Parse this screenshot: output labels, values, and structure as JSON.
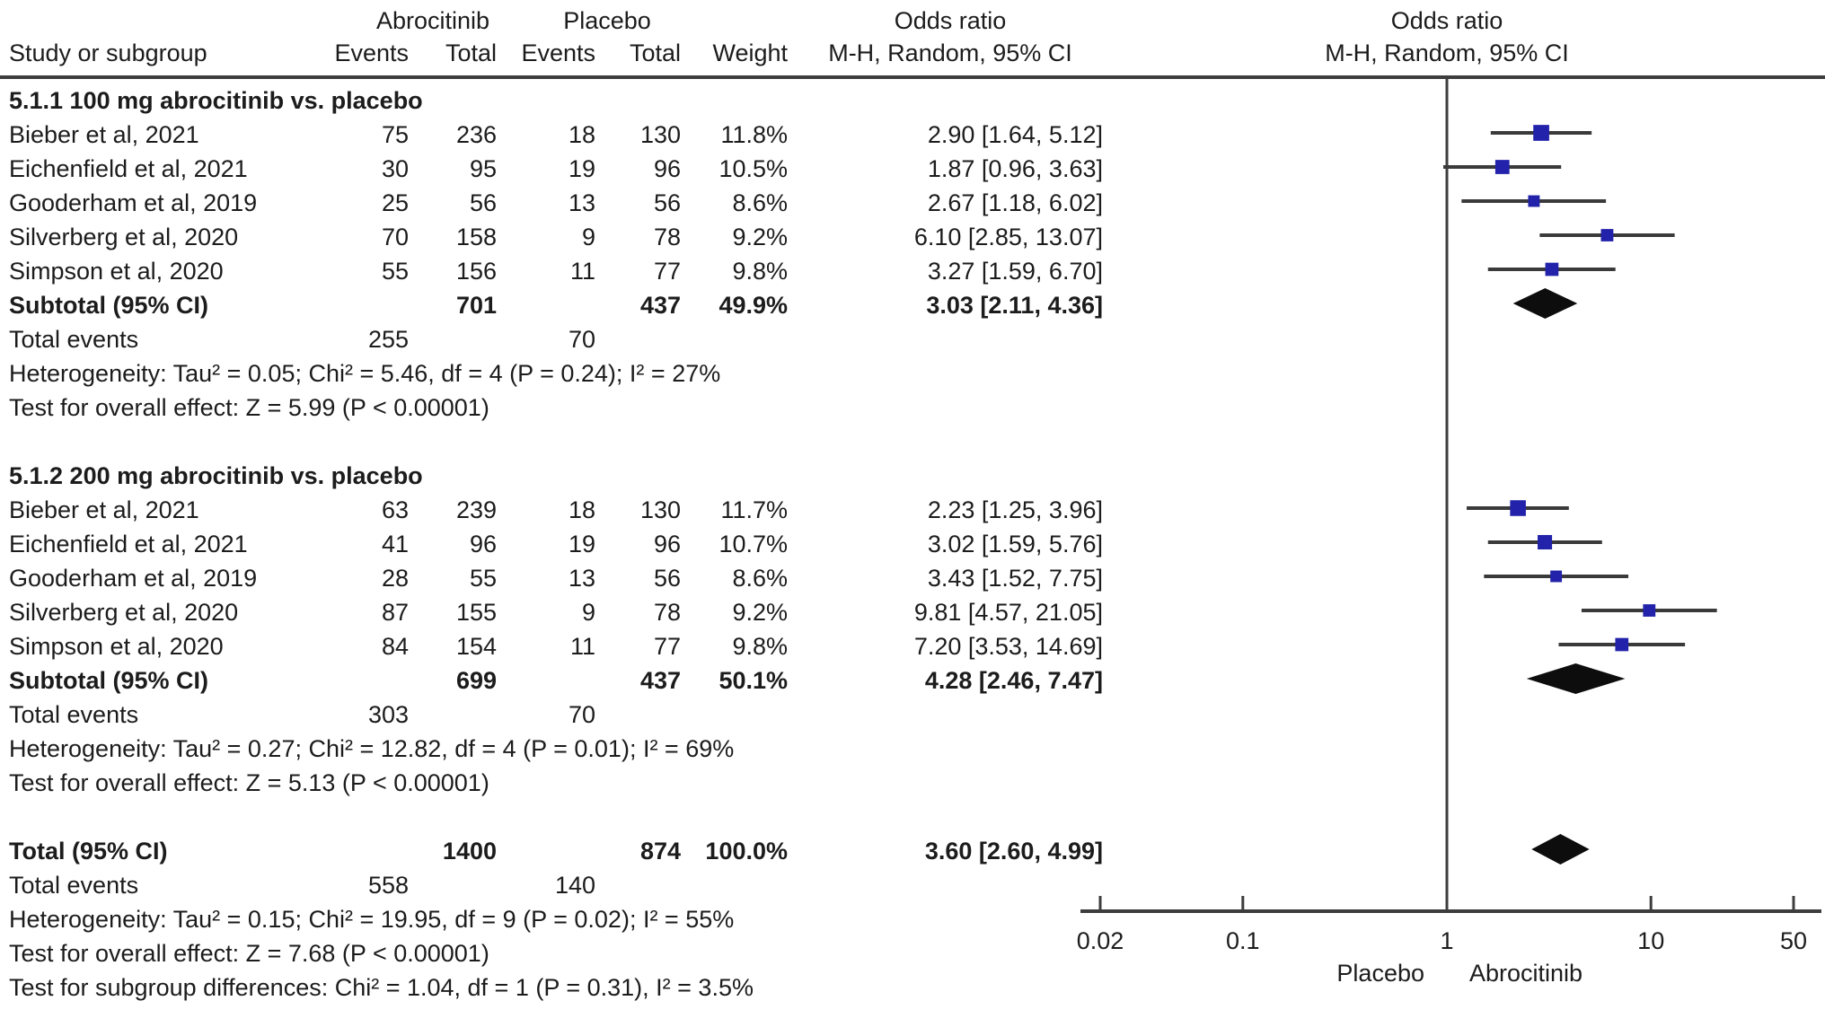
{
  "chart_data": {
    "type": "forest",
    "effect_measure": "Odds ratio",
    "method": "M-H, Random, 95% CI",
    "header": {
      "study_col": "Study or subgroup",
      "treatment_group": "Abrocitinib",
      "control_group": "Placebo",
      "events_col": "Events",
      "total_col": "Total",
      "weight_col": "Weight",
      "or_line1": "Odds ratio",
      "or_line2": "M-H, Random, 95% CI",
      "plot_line1": "Odds ratio",
      "plot_line2": "M-H, Random, 95% CI"
    },
    "groups": [
      {
        "label": "5.1.1 100 mg abrocitinib vs. placebo",
        "studies": [
          {
            "name": "Bieber et al, 2021",
            "e1": "75",
            "n1": "236",
            "e2": "18",
            "n2": "130",
            "weight": "11.8%",
            "weight_val": 11.8,
            "or_text": "2.90 [1.64, 5.12]",
            "or": 2.9,
            "lo": 1.64,
            "hi": 5.12
          },
          {
            "name": "Eichenfield et al, 2021",
            "e1": "30",
            "n1": "95",
            "e2": "19",
            "n2": "96",
            "weight": "10.5%",
            "weight_val": 10.5,
            "or_text": "1.87 [0.96, 3.63]",
            "or": 1.87,
            "lo": 0.96,
            "hi": 3.63
          },
          {
            "name": "Gooderham et al, 2019",
            "e1": "25",
            "n1": "56",
            "e2": "13",
            "n2": "56",
            "weight": "8.6%",
            "weight_val": 8.6,
            "or_text": "2.67 [1.18, 6.02]",
            "or": 2.67,
            "lo": 1.18,
            "hi": 6.02
          },
          {
            "name": "Silverberg et al, 2020",
            "e1": "70",
            "n1": "158",
            "e2": "9",
            "n2": "78",
            "weight": "9.2%",
            "weight_val": 9.2,
            "or_text": "6.10 [2.85, 13.07]",
            "or": 6.1,
            "lo": 2.85,
            "hi": 13.07
          },
          {
            "name": "Simpson et al, 2020",
            "e1": "55",
            "n1": "156",
            "e2": "11",
            "n2": "77",
            "weight": "9.8%",
            "weight_val": 9.8,
            "or_text": "3.27 [1.59, 6.70]",
            "or": 3.27,
            "lo": 1.59,
            "hi": 6.7
          }
        ],
        "subtotal": {
          "label": "Subtotal (95% CI)",
          "n1": "701",
          "n2": "437",
          "weight": "49.9%",
          "or_text": "3.03 [2.11, 4.36]",
          "or": 3.03,
          "lo": 2.11,
          "hi": 4.36
        },
        "total_events": {
          "label": "Total events",
          "e1": "255",
          "e2": "70"
        },
        "heterogeneity": "Heterogeneity: Tau² = 0.05; Chi² = 5.46, df = 4 (P = 0.24); I² = 27%",
        "overall_effect": "Test for overall effect: Z = 5.99 (P < 0.00001)"
      },
      {
        "label": "5.1.2 200 mg abrocitinib vs. placebo",
        "studies": [
          {
            "name": "Bieber et al, 2021",
            "e1": "63",
            "n1": "239",
            "e2": "18",
            "n2": "130",
            "weight": "11.7%",
            "weight_val": 11.7,
            "or_text": "2.23 [1.25, 3.96]",
            "or": 2.23,
            "lo": 1.25,
            "hi": 3.96
          },
          {
            "name": "Eichenfield et al, 2021",
            "e1": "41",
            "n1": "96",
            "e2": "19",
            "n2": "96",
            "weight": "10.7%",
            "weight_val": 10.7,
            "or_text": "3.02 [1.59, 5.76]",
            "or": 3.02,
            "lo": 1.59,
            "hi": 5.76
          },
          {
            "name": "Gooderham et al, 2019",
            "e1": "28",
            "n1": "55",
            "e2": "13",
            "n2": "56",
            "weight": "8.6%",
            "weight_val": 8.6,
            "or_text": "3.43 [1.52, 7.75]",
            "or": 3.43,
            "lo": 1.52,
            "hi": 7.75
          },
          {
            "name": "Silverberg et al, 2020",
            "e1": "87",
            "n1": "155",
            "e2": "9",
            "n2": "78",
            "weight": "9.2%",
            "weight_val": 9.2,
            "or_text": "9.81 [4.57, 21.05]",
            "or": 9.81,
            "lo": 4.57,
            "hi": 21.05
          },
          {
            "name": "Simpson et al, 2020",
            "e1": "84",
            "n1": "154",
            "e2": "11",
            "n2": "77",
            "weight": "9.8%",
            "weight_val": 9.8,
            "or_text": "7.20 [3.53, 14.69]",
            "or": 7.2,
            "lo": 3.53,
            "hi": 14.69
          }
        ],
        "subtotal": {
          "label": "Subtotal (95% CI)",
          "n1": "699",
          "n2": "437",
          "weight": "50.1%",
          "or_text": "4.28 [2.46, 7.47]",
          "or": 4.28,
          "lo": 2.46,
          "hi": 7.47
        },
        "total_events": {
          "label": "Total events",
          "e1": "303",
          "e2": "70"
        },
        "heterogeneity": "Heterogeneity: Tau² = 0.27; Chi² = 12.82, df = 4 (P = 0.01); I² = 69%",
        "overall_effect": "Test for overall effect: Z = 5.13 (P < 0.00001)"
      }
    ],
    "total": {
      "label": "Total (95% CI)",
      "n1": "1400",
      "n2": "874",
      "weight": "100.0%",
      "or_text": "3.60 [2.60, 4.99]",
      "or": 3.6,
      "lo": 2.6,
      "hi": 4.99,
      "total_events": {
        "label": "Total events",
        "e1": "558",
        "e2": "140"
      },
      "heterogeneity": "Heterogeneity: Tau² = 0.15; Chi² = 19.95, df = 9 (P = 0.02); I² = 55%",
      "overall_effect": "Test for overall effect: Z = 7.68 (P < 0.00001)",
      "subgroup_differences": "Test for subgroup differences: Chi² = 1.04, df = 1 (P = 0.31), I² = 3.5%"
    },
    "axis": {
      "scale": "log",
      "ticks": [
        0.02,
        0.1,
        1,
        10,
        50
      ],
      "tick_labels": [
        "0.02",
        "0.1",
        "1",
        "10",
        "50"
      ],
      "left_label": "Placebo",
      "right_label": "Abrocitinib"
    },
    "colors": {
      "marker": "#2222aa",
      "ci_line": "#3a3a3a",
      "diamond": "#0d0d0d",
      "rule": "#3d3d3d",
      "text": "#1c1c1c"
    }
  }
}
